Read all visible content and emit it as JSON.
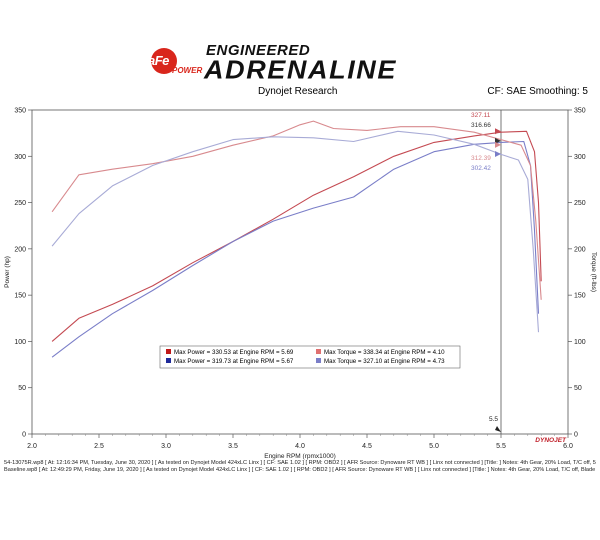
{
  "header": {
    "brand_logo_text": "aFe",
    "brand_logo_subtext": "POWER",
    "title_top": "ENGINEERED",
    "title_main": "ADRENALINE",
    "subtitle": "Dynojet Research",
    "settings": "CF: SAE Smoothing: 5"
  },
  "chart_data": {
    "type": "line",
    "xlabel": "Engine RPM (rpmx1000)",
    "ylabel_left": "Power (hp)",
    "ylabel_right": "Torque (ft-lbs)",
    "xlim": [
      2.0,
      6.0
    ],
    "ylim": [
      0,
      350
    ],
    "xticks": [
      "2.0",
      "2.5",
      "3.0",
      "3.5",
      "4.0",
      "4.5",
      "5.0",
      "5.5",
      "6.0"
    ],
    "yticks": [
      "0",
      "50",
      "100",
      "150",
      "200",
      "250",
      "300",
      "350"
    ],
    "cursor_rpm": 5.5,
    "cursor_label": "5.5",
    "series": [
      {
        "role": "power-modified",
        "color": "#c44a52",
        "x": [
          2.15,
          2.35,
          2.6,
          2.9,
          3.2,
          3.5,
          3.8,
          4.1,
          4.4,
          4.7,
          5.0,
          5.3,
          5.5,
          5.69,
          5.75,
          5.78,
          5.8
        ],
        "y": [
          100,
          125,
          140,
          160,
          185,
          208,
          232,
          258,
          278,
          300,
          315,
          322,
          326,
          327,
          305,
          250,
          165
        ]
      },
      {
        "role": "power-baseline",
        "color": "#7a7ec8",
        "x": [
          2.15,
          2.35,
          2.6,
          2.9,
          3.2,
          3.5,
          3.8,
          4.1,
          4.4,
          4.7,
          5.0,
          5.3,
          5.5,
          5.67,
          5.72,
          5.75,
          5.78
        ],
        "y": [
          83,
          105,
          130,
          155,
          182,
          208,
          230,
          244,
          256,
          286,
          305,
          313,
          315,
          316,
          290,
          220,
          130
        ]
      },
      {
        "role": "torque-modified",
        "color": "#d88a8e",
        "x": [
          2.15,
          2.35,
          2.6,
          2.9,
          3.2,
          3.5,
          3.8,
          4.0,
          4.1,
          4.25,
          4.5,
          4.75,
          5.0,
          5.3,
          5.5,
          5.65,
          5.72,
          5.76,
          5.8
        ],
        "y": [
          240,
          280,
          286,
          292,
          300,
          312,
          322,
          334,
          338,
          330,
          328,
          332,
          332,
          326,
          318,
          312,
          290,
          230,
          145
        ]
      },
      {
        "role": "torque-baseline",
        "color": "#a8abd6",
        "x": [
          2.15,
          2.35,
          2.6,
          2.9,
          3.2,
          3.5,
          3.8,
          4.1,
          4.4,
          4.73,
          5.0,
          5.3,
          5.5,
          5.63,
          5.7,
          5.74,
          5.78
        ],
        "y": [
          203,
          238,
          268,
          290,
          305,
          318,
          321,
          320,
          316,
          327,
          323,
          313,
          302,
          296,
          275,
          200,
          110
        ]
      }
    ],
    "cursor_values": [
      {
        "text": "327.11",
        "color": "#c44a52",
        "value": 327.11
      },
      {
        "text": "316.66",
        "color": "#333333",
        "value": 316.66
      },
      {
        "text": "312.39",
        "color": "#d88a8e",
        "value": 312.39
      },
      {
        "text": "302.42",
        "color": "#7a7ec8",
        "value": 302.42
      }
    ],
    "legend": {
      "placement": "center",
      "entries": [
        {
          "text": "Max Power = 330.53 at Engine RPM = 5.69",
          "color": "#c01818"
        },
        {
          "text": "Max Torque = 338.34 at Engine RPM = 4.10",
          "color": "#e07070"
        },
        {
          "text": "Max Power = 319.73 at Engine RPM = 5.67",
          "color": "#1f2a9a"
        },
        {
          "text": "Max Torque = 327.10 at Engine RPM = 4.73",
          "color": "#7a7ec8"
        }
      ]
    },
    "grid": false,
    "brand_mark": "DYNOJET"
  },
  "footnotes": [
    "54-13075R.wp8 [ At: 12:16:34 PM, Tuesday, June 30, 2020 ] [ As tested on Dynojet Model 424xLC Linx ] [ CF: SAE 1.02 ] [ RPM: OBD2 ] [ AFR Source: Dynoware RT WB ] [ Linx not connected ] [Title: ] Notes: 4th Gear, 20% Load, T/C off, 54-13075R AIS, Blade Fan + Red Fan, Stock Exhaust, Pedal Commander",
    "Baseline.wp8 [ At: 12:49:29 PM, Friday, June 19, 2020 ] [ As tested on Dynojet Model 424xLC Linx ] [ CF: SAE 1.02 ] [ RPM: OBD2 ] [ AFR Source: Dynoware RT WB ] [ Linx not connected ] [Title: ] Notes: 4th Gear, 20% Load, T/C off, Blade Fan + Red Fan, Stock Intake, Stock Exhaust, Pedal Commander"
  ]
}
